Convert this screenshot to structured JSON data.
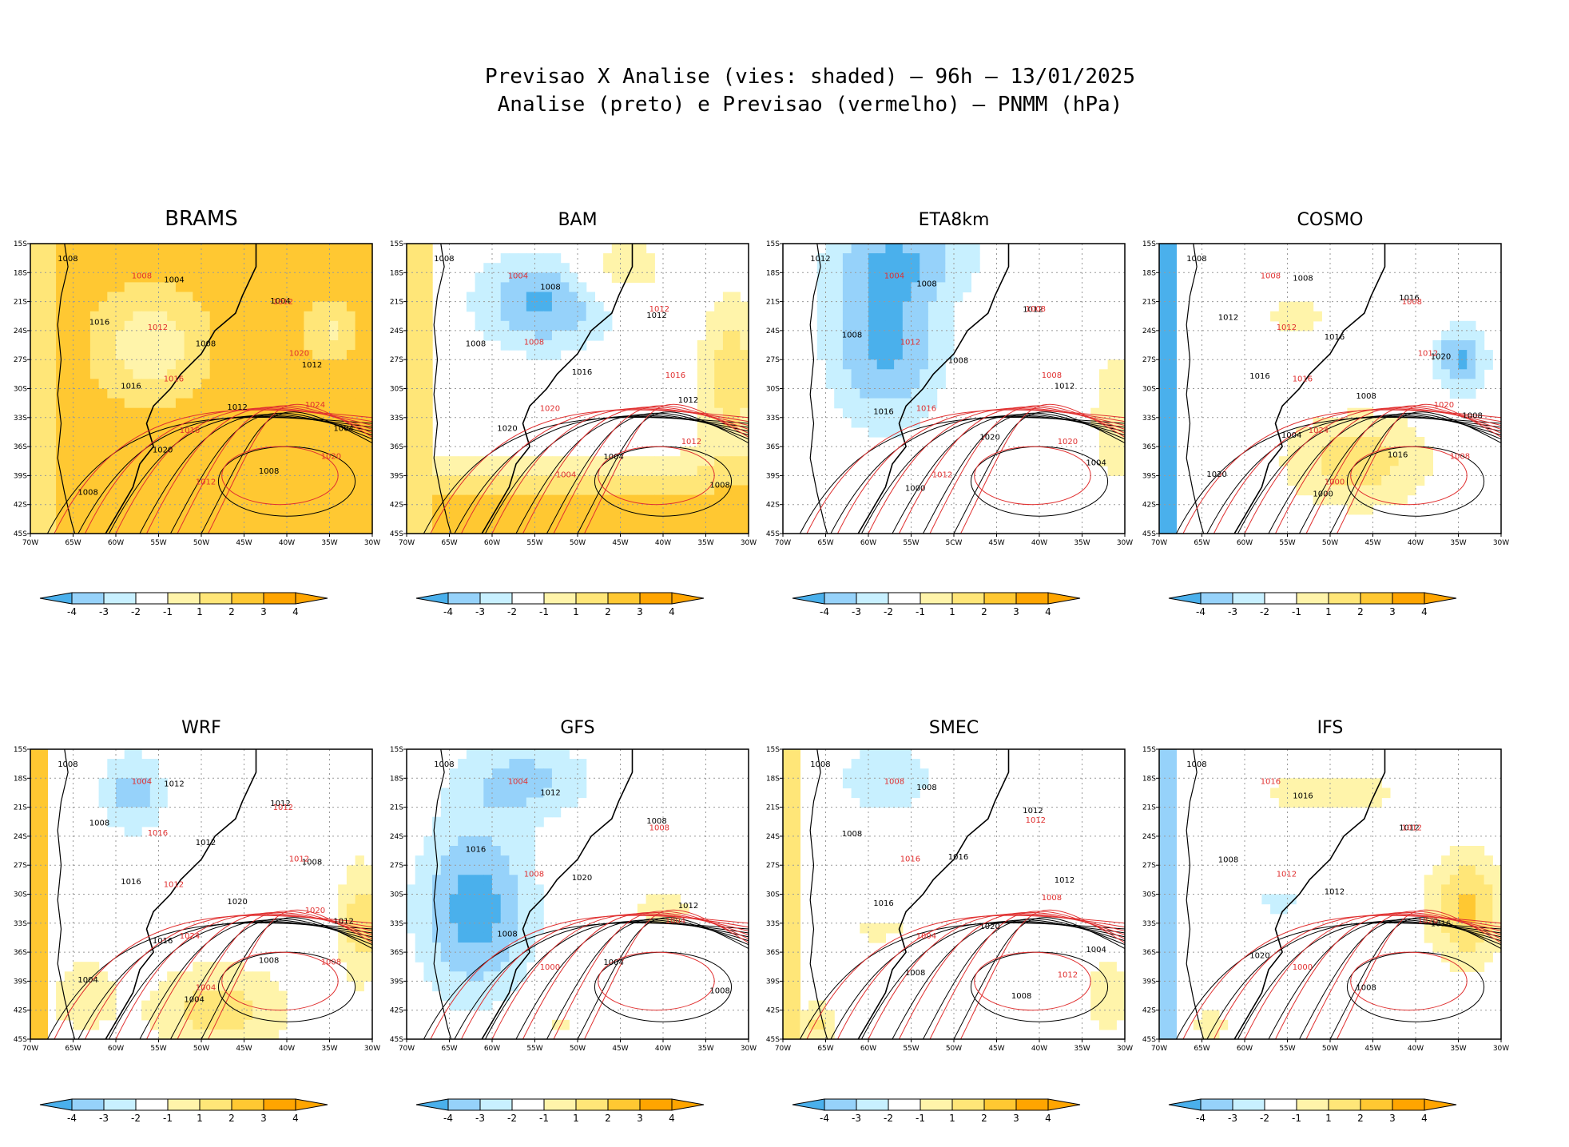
{
  "title_line1": "Previsao X Analise (vies: shaded) — 96h — 13/01/2025",
  "title_line2": "Analise (preto) e Previsao (vermelho) — PNMM (hPa)",
  "colors": {
    "neg4": "#4ab0ec",
    "neg3": "#96d2fa",
    "neg2": "#c8f0ff",
    "neg1": "#ffffff",
    "pos1": "#fff4aa",
    "pos2": "#ffe678",
    "pos3": "#ffc832",
    "pos4": "#ffa500",
    "analysis_line": "#000000",
    "forecast_line": "#e03030",
    "grid": "#9a9a9a",
    "frame": "#000000"
  },
  "chart_data": [
    {
      "type": "heatmap",
      "title": "BRAMS",
      "variable": "PNMM bias (hPa), shaded",
      "lat_ticks": [
        "15S",
        "18S",
        "21S",
        "24S",
        "27S",
        "30S",
        "33S",
        "36S",
        "39S",
        "42S",
        "45S"
      ],
      "lon_ticks": [
        "70W",
        "65W",
        "60W",
        "55W",
        "50W",
        "45W",
        "40W",
        "35W",
        "30W"
      ],
      "lon_range": [
        -70,
        -30
      ],
      "lat_range": [
        -45,
        -15
      ],
      "colorbar_ticks": [
        "-4",
        "-3",
        "-2",
        "-1",
        "1",
        "2",
        "3",
        "4"
      ],
      "dominant_bias": "positive, 3 to 4 over most of the domain",
      "analysis_isobar_labels": [
        "1008",
        "1004",
        "1004",
        "1016",
        "1008",
        "1012",
        "1016",
        "1012",
        "1004",
        "1020",
        "1008",
        "1008"
      ],
      "forecast_isobar_labels": [
        "1008",
        "1012",
        "1012",
        "1020",
        "1016",
        "1024",
        "1016",
        "1020",
        "1012"
      ]
    },
    {
      "type": "heatmap",
      "title": "BAM",
      "variable": "PNMM bias (hPa), shaded",
      "lat_ticks": [
        "15S",
        "18S",
        "21S",
        "24S",
        "27S",
        "30S",
        "33S",
        "36S",
        "39S",
        "42S",
        "45S"
      ],
      "lon_ticks": [
        "70W",
        "65W",
        "60W",
        "55W",
        "50W",
        "45W",
        "40W",
        "35W",
        "30W"
      ],
      "lon_range": [
        -70,
        -30
      ],
      "lat_range": [
        -45,
        -15
      ],
      "colorbar_ticks": [
        "-4",
        "-3",
        "-2",
        "-1",
        "1",
        "2",
        "3",
        "4"
      ],
      "dominant_bias": "negative over central South America, positive over the south Atlantic",
      "analysis_isobar_labels": [
        "1008",
        "1008",
        "1012",
        "1008",
        "1016",
        "1012",
        "1020",
        "1004",
        "1008"
      ],
      "forecast_isobar_labels": [
        "1004",
        "1012",
        "1008",
        "1016",
        "1020",
        "1012",
        "1004"
      ]
    },
    {
      "type": "heatmap",
      "title": "ETA8km",
      "variable": "PNMM bias (hPa), shaded",
      "lat_ticks": [
        "15S",
        "18S",
        "21S",
        "24S",
        "27S",
        "30S",
        "33S",
        "36S",
        "39S",
        "42S",
        "45S"
      ],
      "lon_ticks": [
        "70W",
        "65W",
        "60W",
        "55W",
        "5CW",
        "45W",
        "40W",
        "35W",
        "30W"
      ],
      "lon_range": [
        -70,
        -30
      ],
      "lat_range": [
        -45,
        -15
      ],
      "colorbar_ticks": [
        "-4",
        "-3",
        "-2",
        "-1",
        "1",
        "2",
        "3",
        "4"
      ],
      "dominant_bias": "negative over the continent, near zero over the ocean",
      "analysis_isobar_labels": [
        "1012",
        "1008",
        "1012",
        "1008",
        "1008",
        "1012",
        "1016",
        "1020",
        "1004",
        "1000"
      ],
      "forecast_isobar_labels": [
        "1004",
        "1008",
        "1012",
        "1008",
        "1016",
        "1020",
        "1012"
      ]
    },
    {
      "type": "heatmap",
      "title": "COSMO",
      "variable": "PNMM bias (hPa), shaded",
      "lat_ticks": [
        "15S",
        "18S",
        "21S",
        "24S",
        "27S",
        "30S",
        "33S",
        "36S",
        "39S",
        "42S",
        "45S"
      ],
      "lon_ticks": [
        "70W",
        "65W",
        "60W",
        "55W",
        "50W",
        "45W",
        "40W",
        "35W",
        "30W"
      ],
      "lon_range": [
        -70,
        -30
      ],
      "lat_range": [
        -45,
        -15
      ],
      "colorbar_ticks": [
        "-4",
        "-3",
        "-2",
        "-1",
        "1",
        "2",
        "3",
        "4"
      ],
      "dominant_bias": "positive over the south Atlantic, negative patch near 27S 33W",
      "analysis_isobar_labels": [
        "1008",
        "1008",
        "1016",
        "1012",
        "1016",
        "1020",
        "1016",
        "1008",
        "1008",
        "1004",
        "1016",
        "1020",
        "1000"
      ],
      "forecast_isobar_labels": [
        "1008",
        "1008",
        "1012",
        "1012",
        "1016",
        "1020",
        "1024",
        "1008",
        "1000"
      ]
    },
    {
      "type": "heatmap",
      "title": "WRF",
      "variable": "PNMM bias (hPa), shaded",
      "lat_ticks": [
        "15S",
        "18S",
        "21S",
        "24S",
        "27S",
        "30S",
        "33S",
        "36S",
        "39S",
        "42S",
        "45S"
      ],
      "lon_ticks": [
        "70W",
        "65W",
        "60W",
        "55W",
        "50W",
        "45W",
        "40W",
        "35W",
        "30W"
      ],
      "lon_range": [
        -70,
        -30
      ],
      "lat_range": [
        -45,
        -15
      ],
      "colorbar_ticks": [
        "-4",
        "-3",
        "-2",
        "-1",
        "1",
        "2",
        "3",
        "4"
      ],
      "dominant_bias": "mixed; positive along the south and east, negative in the north",
      "analysis_isobar_labels": [
        "1008",
        "1012",
        "1012",
        "1008",
        "1012",
        "1008",
        "1016",
        "1020",
        "1012",
        "1016",
        "1008",
        "1004",
        "1004"
      ],
      "forecast_isobar_labels": [
        "1004",
        "1012",
        "1016",
        "1012",
        "1012",
        "1020",
        "1024",
        "1008",
        "1004"
      ]
    },
    {
      "type": "heatmap",
      "title": "GFS",
      "variable": "PNMM bias (hPa), shaded",
      "lat_ticks": [
        "15S",
        "18S",
        "21S",
        "24S",
        "27S",
        "30S",
        "33S",
        "36S",
        "39S",
        "42S",
        "45S"
      ],
      "lon_ticks": [
        "70W",
        "65W",
        "60W",
        "55W",
        "50W",
        "45W",
        "40W",
        "35W",
        "30W"
      ],
      "lon_range": [
        -70,
        -30
      ],
      "lat_range": [
        -45,
        -15
      ],
      "colorbar_ticks": [
        "-4",
        "-3",
        "-2",
        "-1",
        "1",
        "2",
        "3",
        "4"
      ],
      "dominant_bias": "strongly negative over the continent, weak elsewhere",
      "analysis_isobar_labels": [
        "1008",
        "1012",
        "1008",
        "1016",
        "1020",
        "1012",
        "1008",
        "1004",
        "1008"
      ],
      "forecast_isobar_labels": [
        "1004",
        "1008",
        "1008",
        "1004",
        "1000"
      ]
    },
    {
      "type": "heatmap",
      "title": "SMEC",
      "variable": "PNMM bias (hPa), shaded",
      "lat_ticks": [
        "15S",
        "18S",
        "21S",
        "24S",
        "27S",
        "30S",
        "33S",
        "36S",
        "39S",
        "42S",
        "45S"
      ],
      "lon_ticks": [
        "70W",
        "65W",
        "60W",
        "55W",
        "50W",
        "45W",
        "40W",
        "35W",
        "30W"
      ],
      "lon_range": [
        -70,
        -30
      ],
      "lat_range": [
        -45,
        -15
      ],
      "colorbar_ticks": [
        "-4",
        "-3",
        "-2",
        "-1",
        "1",
        "2",
        "3",
        "4"
      ],
      "dominant_bias": "weak, mostly near zero; small positive patches",
      "analysis_isobar_labels": [
        "1008",
        "1008",
        "1012",
        "1008",
        "1016",
        "1012",
        "1016",
        "1020",
        "1004",
        "1008",
        "1008"
      ],
      "forecast_isobar_labels": [
        "1008",
        "1012",
        "1016",
        "1008",
        "1004",
        "1012"
      ]
    },
    {
      "type": "heatmap",
      "title": "IFS",
      "variable": "PNMM bias (hPa), shaded",
      "lat_ticks": [
        "15S",
        "18S",
        "21S",
        "24S",
        "27S",
        "30S",
        "33S",
        "36S",
        "39S",
        "42S",
        "45S"
      ],
      "lon_ticks": [
        "70W",
        "65W",
        "60W",
        "55W",
        "50W",
        "45W",
        "40W",
        "35W",
        "30W"
      ],
      "lon_range": [
        -70,
        -30
      ],
      "lat_range": [
        -45,
        -15
      ],
      "colorbar_ticks": [
        "-4",
        "-3",
        "-2",
        "-1",
        "1",
        "2",
        "3",
        "4"
      ],
      "dominant_bias": "positive over the south Atlantic (east), small negative patches",
      "analysis_isobar_labels": [
        "1008",
        "1016",
        "1012",
        "1008",
        "1012",
        "1016",
        "1020",
        "1008"
      ],
      "forecast_isobar_labels": [
        "1016",
        "1012",
        "1012",
        "1020",
        "1000"
      ]
    }
  ]
}
